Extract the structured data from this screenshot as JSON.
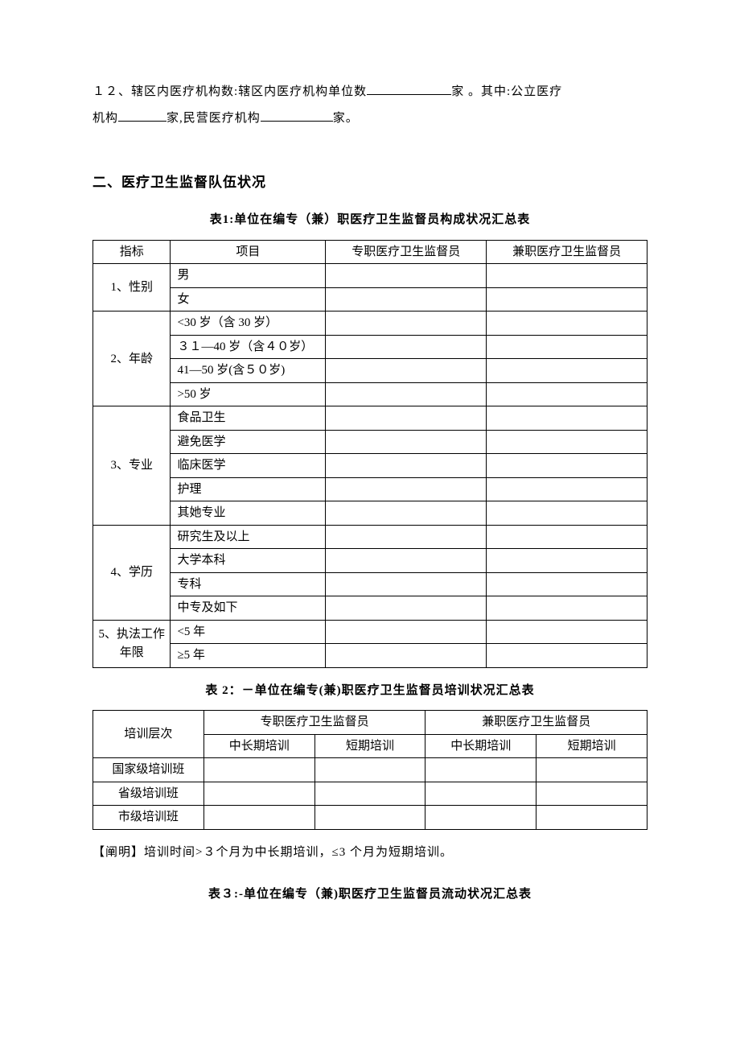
{
  "intro": {
    "item12_label": "１２、辖区内医疗机构数:",
    "item12_text1": "辖区内医疗机构单位数",
    "item12_text2": "家 。其中:公立医疗",
    "item12_line2a": "机构",
    "item12_line2b": "家,民营医疗机构",
    "item12_line2c": "家。"
  },
  "section2_title": "二、医疗卫生监督队伍状况",
  "table1": {
    "title": "表1:单位在编专（兼）职医疗卫生监督员构成状况汇总表",
    "headers": [
      "指标",
      "项目",
      "专职医疗卫生监督员",
      "兼职医疗卫生监督员"
    ],
    "groups": [
      {
        "label": "1、性别",
        "rows": [
          "男",
          "女"
        ]
      },
      {
        "label": "2、年龄",
        "rows": [
          "<30 岁（含 30 岁）",
          "３１—40 岁（含４０岁）",
          "41—50 岁(含５０岁)",
          ">50 岁"
        ]
      },
      {
        "label": "3、专业",
        "rows": [
          "食品卫生",
          "避免医学",
          "临床医学",
          "护理",
          "其她专业"
        ]
      },
      {
        "label": "4、学历",
        "rows": [
          "研究生及以上",
          "大学本科",
          "专科",
          "中专及如下"
        ]
      },
      {
        "label": "5、执法工作年限",
        "rows": [
          "<5 年",
          "≥5 年"
        ]
      }
    ]
  },
  "table2": {
    "title": "表 2：－单位在编专(兼)职医疗卫生监督员培训状况汇总表",
    "row1": [
      "培训层次",
      "专职医疗卫生监督员",
      "兼职医疗卫生监督员"
    ],
    "row2": [
      "中长期培训",
      "短期培训",
      "中长期培训",
      "短期培训"
    ],
    "body_rows": [
      "国家级培训班",
      "省级培训班",
      "市级培训班"
    ]
  },
  "note": "【阐明】培训时间>３个月为中长期培训，≤3 个月为短期培训。",
  "table3_title": "表３:-单位在编专（兼)职医疗卫生监督员流动状况汇总表"
}
